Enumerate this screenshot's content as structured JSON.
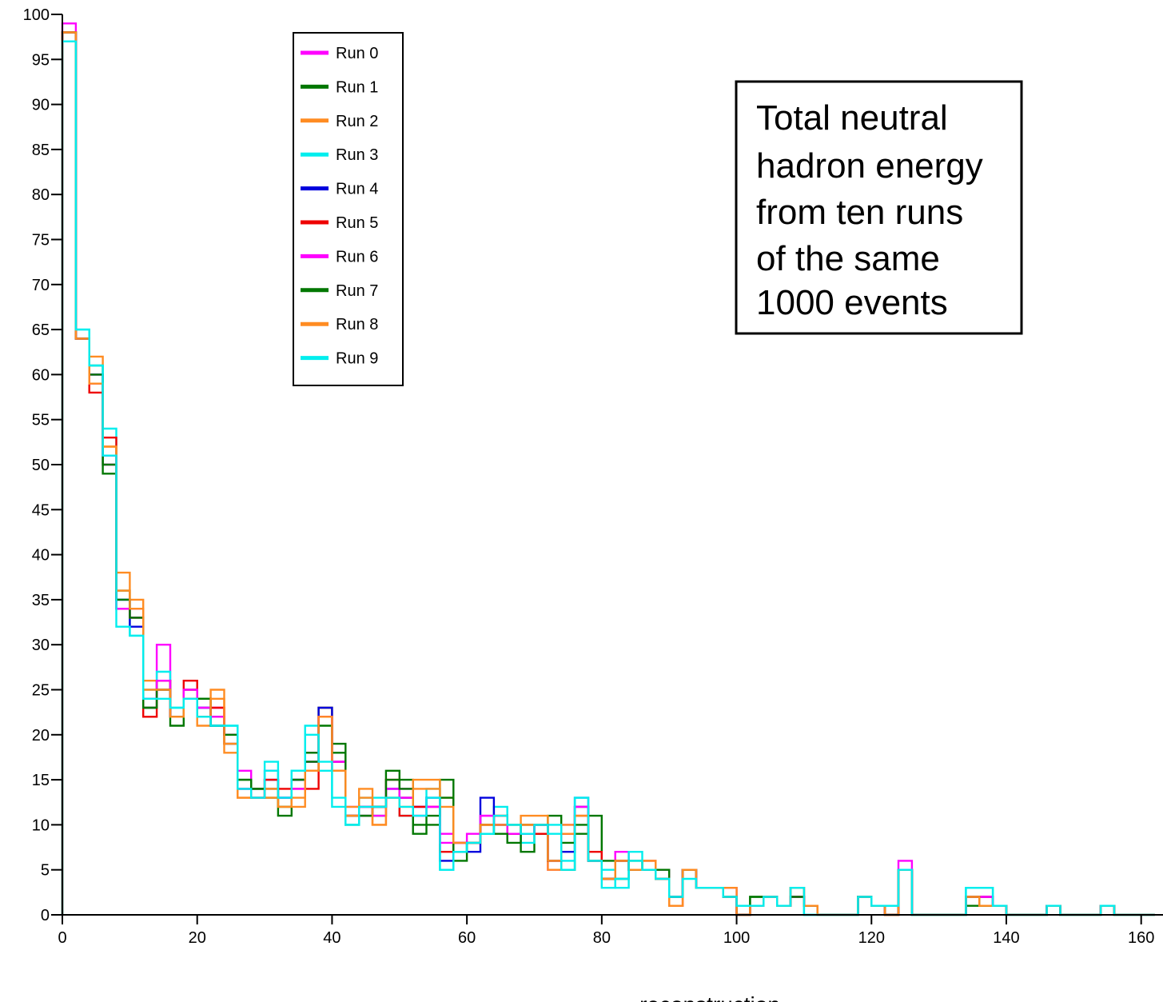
{
  "chart_data": {
    "type": "histogram",
    "title": "",
    "xlabel": "reconstruction",
    "ylabel": "",
    "xlim": [
      0,
      163
    ],
    "ylim": [
      0,
      100
    ],
    "xticks": [
      0,
      20,
      40,
      60,
      80,
      100,
      120,
      140,
      160
    ],
    "yticks": [
      0,
      5,
      10,
      15,
      20,
      25,
      30,
      35,
      40,
      45,
      50,
      55,
      60,
      65,
      70,
      75,
      80,
      85,
      90,
      95,
      100
    ],
    "bin_width": 2,
    "grid": false,
    "legend_position": "top-left",
    "annotation": {
      "lines": [
        "Total neutral",
        "hadron energy",
        "from ten runs",
        "of the same",
        "1000 events"
      ]
    },
    "series": [
      {
        "name": "Run 0",
        "color": "#ff00ff",
        "values": [
          99,
          64,
          60,
          50,
          34,
          34,
          23,
          30,
          22,
          25,
          22,
          23,
          19,
          16,
          14,
          16,
          13,
          15,
          18,
          22,
          16,
          12,
          11,
          12,
          14,
          14,
          12,
          12,
          9,
          8,
          9,
          11,
          10,
          9,
          9,
          10,
          5,
          10,
          13,
          6,
          4,
          7,
          5,
          6,
          5,
          1,
          5,
          3,
          3,
          3,
          0,
          1,
          2,
          1,
          3,
          1,
          0,
          0,
          0,
          2,
          1,
          0,
          6,
          0,
          0,
          0,
          0,
          2,
          2,
          1,
          0,
          0,
          0,
          1,
          0,
          0,
          0,
          1,
          0,
          0,
          0
        ]
      },
      {
        "name": "Run 1",
        "color": "#007700",
        "values": [
          98,
          64,
          61,
          49,
          36,
          33,
          23,
          26,
          21,
          25,
          24,
          22,
          19,
          15,
          14,
          13,
          11,
          15,
          18,
          23,
          19,
          10,
          11,
          11,
          16,
          15,
          9,
          10,
          15,
          6,
          8,
          9,
          10,
          10,
          7,
          9,
          11,
          5,
          9,
          11,
          6,
          4,
          6,
          5,
          5,
          2,
          5,
          3,
          3,
          2,
          0,
          2,
          2,
          1,
          3,
          1,
          0,
          0,
          0,
          2,
          1,
          0,
          5,
          0,
          0,
          0,
          0,
          1,
          1,
          1,
          0,
          0,
          0,
          1,
          0,
          0,
          0,
          1,
          0,
          0,
          0
        ]
      },
      {
        "name": "Run 2",
        "color": "#ff8c22",
        "values": [
          98,
          64,
          62,
          52,
          38,
          35,
          26,
          26,
          22,
          25,
          21,
          25,
          18,
          13,
          13,
          13,
          12,
          12,
          16,
          23,
          16,
          12,
          14,
          10,
          13,
          13,
          15,
          15,
          13,
          8,
          8,
          10,
          11,
          9,
          11,
          11,
          5,
          10,
          12,
          6,
          4,
          6,
          5,
          6,
          4,
          1,
          5,
          3,
          3,
          3,
          0,
          1,
          2,
          1,
          3,
          1,
          0,
          0,
          0,
          2,
          1,
          0,
          5,
          0,
          0,
          0,
          0,
          2,
          1,
          1,
          0,
          0,
          0,
          1,
          0,
          0,
          0,
          1,
          0,
          0,
          0
        ]
      },
      {
        "name": "Run 3",
        "color": "#00eeee",
        "values": [
          97,
          65,
          61,
          54,
          35,
          31,
          25,
          27,
          23,
          24,
          23,
          21,
          21,
          14,
          14,
          17,
          13,
          16,
          21,
          16,
          12,
          10,
          13,
          13,
          14,
          11,
          11,
          14,
          5,
          7,
          8,
          9,
          12,
          10,
          8,
          10,
          10,
          5,
          13,
          6,
          5,
          3,
          7,
          5,
          4,
          2,
          5,
          3,
          3,
          2,
          1,
          1,
          2,
          1,
          3,
          0,
          0,
          0,
          0,
          2,
          1,
          1,
          5,
          0,
          0,
          0,
          0,
          3,
          3,
          1,
          0,
          0,
          0,
          1,
          0,
          0,
          0,
          1,
          0,
          0,
          0
        ]
      },
      {
        "name": "Run 4",
        "color": "#0000dd",
        "values": [
          98,
          64,
          60,
          51,
          35,
          32,
          24,
          25,
          22,
          24,
          23,
          21,
          20,
          14,
          13,
          15,
          13,
          15,
          17,
          23,
          17,
          11,
          12,
          12,
          14,
          13,
          12,
          13,
          6,
          7,
          7,
          13,
          10,
          9,
          9,
          10,
          6,
          7,
          12,
          6,
          4,
          6,
          5,
          5,
          4,
          2,
          5,
          3,
          3,
          2,
          0,
          1,
          2,
          1,
          2,
          1,
          0,
          0,
          0,
          2,
          1,
          0,
          5,
          0,
          0,
          0,
          0,
          2,
          2,
          1,
          0,
          0,
          0,
          1,
          0,
          0,
          0,
          1,
          0,
          0,
          0
        ]
      },
      {
        "name": "Run 5",
        "color": "#ee0000",
        "values": [
          98,
          64,
          58,
          53,
          34,
          33,
          22,
          26,
          22,
          26,
          22,
          23,
          20,
          14,
          14,
          15,
          14,
          14,
          14,
          22,
          17,
          11,
          12,
          12,
          15,
          11,
          12,
          12,
          7,
          8,
          8,
          10,
          11,
          9,
          10,
          9,
          6,
          9,
          11,
          7,
          4,
          6,
          5,
          5,
          4,
          2,
          5,
          3,
          3,
          2,
          0,
          1,
          2,
          1,
          2,
          1,
          0,
          0,
          0,
          2,
          1,
          0,
          5,
          0,
          0,
          0,
          0,
          2,
          2,
          1,
          0,
          0,
          0,
          1,
          0,
          0,
          0,
          1,
          0,
          0,
          0
        ]
      },
      {
        "name": "Run 6",
        "color": "#ff00ff",
        "values": [
          98,
          64,
          59,
          51,
          34,
          33,
          24,
          26,
          22,
          25,
          23,
          22,
          20,
          14,
          13,
          14,
          13,
          14,
          17,
          22,
          17,
          11,
          12,
          11,
          14,
          13,
          11,
          12,
          8,
          8,
          8,
          11,
          10,
          9,
          9,
          10,
          6,
          9,
          12,
          6,
          4,
          6,
          5,
          5,
          4,
          2,
          5,
          3,
          3,
          2,
          0,
          1,
          2,
          1,
          2,
          1,
          0,
          0,
          0,
          2,
          1,
          0,
          5,
          0,
          0,
          0,
          0,
          2,
          2,
          1,
          0,
          0,
          0,
          1,
          0,
          0,
          0,
          1,
          0,
          0,
          0
        ]
      },
      {
        "name": "Run 7",
        "color": "#007700",
        "values": [
          98,
          64,
          60,
          50,
          35,
          33,
          23,
          25,
          22,
          24,
          24,
          21,
          20,
          15,
          14,
          14,
          12,
          15,
          17,
          21,
          18,
          11,
          11,
          12,
          15,
          14,
          10,
          11,
          13,
          7,
          8,
          10,
          9,
          8,
          10,
          10,
          6,
          8,
          10,
          6,
          4,
          6,
          5,
          5,
          4,
          2,
          5,
          3,
          3,
          2,
          0,
          2,
          2,
          1,
          2,
          1,
          0,
          0,
          0,
          2,
          1,
          0,
          5,
          0,
          0,
          0,
          0,
          2,
          1,
          1,
          0,
          0,
          0,
          1,
          0,
          0,
          0,
          1,
          0,
          0,
          0
        ]
      },
      {
        "name": "Run 8",
        "color": "#ff8c22",
        "values": [
          98,
          64,
          59,
          52,
          36,
          34,
          25,
          25,
          22,
          24,
          22,
          24,
          19,
          13,
          13,
          14,
          12,
          13,
          16,
          22,
          16,
          11,
          13,
          10,
          13,
          12,
          14,
          14,
          12,
          8,
          8,
          10,
          10,
          10,
          10,
          10,
          6,
          9,
          11,
          6,
          4,
          6,
          5,
          6,
          4,
          1,
          5,
          3,
          3,
          2,
          0,
          1,
          2,
          1,
          3,
          1,
          0,
          0,
          0,
          2,
          1,
          0,
          5,
          0,
          0,
          0,
          0,
          2,
          1,
          1,
          0,
          0,
          0,
          1,
          0,
          0,
          0,
          1,
          0,
          0,
          0
        ]
      },
      {
        "name": "Run 9",
        "color": "#00eeee",
        "values": [
          97,
          65,
          61,
          51,
          32,
          31,
          24,
          24,
          23,
          24,
          22,
          21,
          21,
          14,
          13,
          16,
          13,
          16,
          20,
          17,
          13,
          10,
          12,
          12,
          13,
          12,
          11,
          13,
          5,
          7,
          8,
          9,
          11,
          10,
          9,
          10,
          9,
          6,
          13,
          6,
          3,
          4,
          6,
          5,
          4,
          2,
          4,
          3,
          3,
          2,
          1,
          1,
          2,
          1,
          3,
          0,
          0,
          0,
          0,
          2,
          1,
          1,
          5,
          0,
          0,
          0,
          0,
          3,
          3,
          1,
          0,
          0,
          0,
          1,
          0,
          0,
          0,
          1,
          0,
          0,
          0
        ]
      }
    ]
  }
}
